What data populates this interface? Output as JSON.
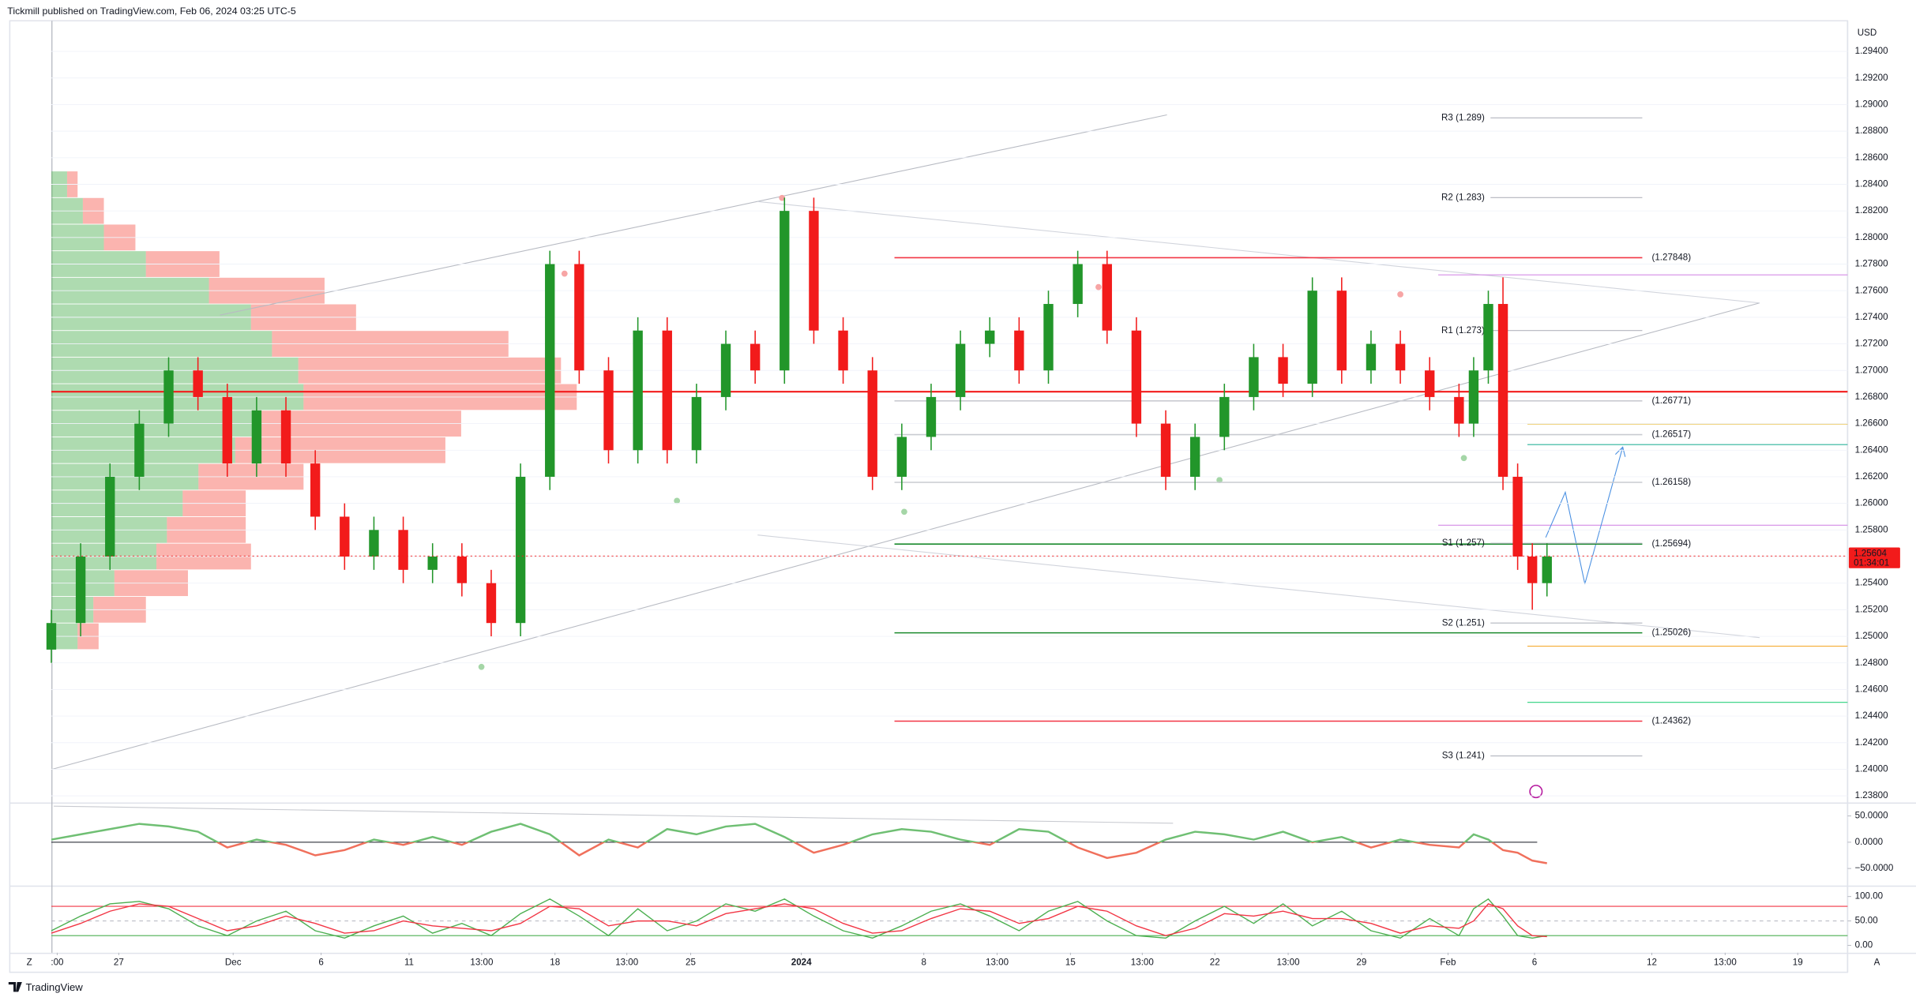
{
  "header": {
    "title": "Tickmill published on TradingView.com, Feb 06, 2024 03:25 UTC-5"
  },
  "footer": {
    "logo": "TradingView",
    "left_button": "Z",
    "right_button": "A"
  },
  "chart_data": [
    {
      "type": "candlestick",
      "currency": "USD",
      "up_color": "#22962a",
      "down_color": "#f21b1b",
      "x": [
        0,
        4,
        8,
        12,
        16,
        20,
        24,
        28,
        32,
        36,
        40,
        44,
        48,
        52,
        56,
        60,
        64,
        68,
        72,
        76,
        80,
        84,
        88,
        92,
        96,
        100,
        104,
        108,
        112,
        116,
        120,
        124,
        128,
        132,
        136,
        140,
        144,
        148,
        152,
        156,
        160,
        164,
        168,
        172,
        176,
        180,
        184,
        188,
        192,
        194,
        196,
        198,
        200,
        202,
        204
      ],
      "open": [
        1.249,
        1.251,
        1.256,
        1.262,
        1.266,
        1.27,
        1.268,
        1.263,
        1.267,
        1.263,
        1.259,
        1.256,
        1.258,
        1.255,
        1.256,
        1.254,
        1.251,
        1.262,
        1.278,
        1.27,
        1.264,
        1.273,
        1.264,
        1.268,
        1.272,
        1.27,
        1.282,
        1.273,
        1.27,
        1.262,
        1.265,
        1.268,
        1.272,
        1.273,
        1.27,
        1.275,
        1.278,
        1.273,
        1.266,
        1.262,
        1.265,
        1.268,
        1.271,
        1.269,
        1.276,
        1.27,
        1.272,
        1.27,
        1.268,
        1.266,
        1.27,
        1.275,
        1.262,
        1.256,
        1.254
      ],
      "high": [
        1.252,
        1.257,
        1.263,
        1.267,
        1.271,
        1.271,
        1.269,
        1.268,
        1.268,
        1.264,
        1.26,
        1.259,
        1.259,
        1.257,
        1.257,
        1.255,
        1.263,
        1.279,
        1.279,
        1.271,
        1.274,
        1.274,
        1.269,
        1.273,
        1.273,
        1.283,
        1.283,
        1.274,
        1.271,
        1.266,
        1.269,
        1.273,
        1.274,
        1.274,
        1.276,
        1.279,
        1.279,
        1.274,
        1.267,
        1.266,
        1.269,
        1.272,
        1.272,
        1.277,
        1.277,
        1.273,
        1.273,
        1.271,
        1.269,
        1.271,
        1.276,
        1.277,
        1.263,
        1.257,
        1.257
      ],
      "low": [
        1.248,
        1.25,
        1.255,
        1.261,
        1.265,
        1.267,
        1.262,
        1.262,
        1.262,
        1.258,
        1.255,
        1.255,
        1.254,
        1.254,
        1.253,
        1.25,
        1.25,
        1.261,
        1.269,
        1.263,
        1.263,
        1.263,
        1.263,
        1.267,
        1.269,
        1.269,
        1.272,
        1.269,
        1.261,
        1.261,
        1.264,
        1.267,
        1.271,
        1.269,
        1.269,
        1.274,
        1.272,
        1.265,
        1.261,
        1.261,
        1.264,
        1.267,
        1.268,
        1.268,
        1.269,
        1.269,
        1.269,
        1.267,
        1.265,
        1.265,
        1.269,
        1.261,
        1.255,
        1.252,
        1.253
      ],
      "close": [
        1.251,
        1.256,
        1.262,
        1.266,
        1.27,
        1.268,
        1.263,
        1.267,
        1.263,
        1.259,
        1.256,
        1.258,
        1.255,
        1.256,
        1.254,
        1.251,
        1.262,
        1.278,
        1.27,
        1.264,
        1.273,
        1.264,
        1.268,
        1.272,
        1.27,
        1.282,
        1.273,
        1.27,
        1.262,
        1.265,
        1.268,
        1.272,
        1.273,
        1.27,
        1.275,
        1.278,
        1.273,
        1.266,
        1.262,
        1.265,
        1.268,
        1.271,
        1.269,
        1.276,
        1.27,
        1.272,
        1.27,
        1.268,
        1.266,
        1.27,
        1.275,
        1.262,
        1.256,
        1.254,
        1.256
      ],
      "xlim": [
        0,
        245
      ],
      "ylim": [
        1.2375,
        1.2963
      ],
      "xticks": [
        {
          "value": 0.8,
          "label": ":00"
        },
        {
          "value": 9.2,
          "label": "27"
        },
        {
          "value": 24.8,
          "label": "Dec"
        },
        {
          "value": 36.8,
          "label": "6"
        },
        {
          "value": 48.8,
          "label": "11"
        },
        {
          "value": 58.7,
          "label": "13:00"
        },
        {
          "value": 68.7,
          "label": "18"
        },
        {
          "value": 78.5,
          "label": "13:00"
        },
        {
          "value": 87.2,
          "label": "25"
        },
        {
          "value": 102.3,
          "label": "2024"
        },
        {
          "value": 119,
          "label": "8"
        },
        {
          "value": 129,
          "label": "13:00"
        },
        {
          "value": 139,
          "label": "15"
        },
        {
          "value": 148.8,
          "label": "13:00"
        },
        {
          "value": 158.7,
          "label": "22"
        },
        {
          "value": 168.7,
          "label": "13:00"
        },
        {
          "value": 178.7,
          "label": "29"
        },
        {
          "value": 190.5,
          "label": "Feb"
        },
        {
          "value": 202.3,
          "label": "6"
        },
        {
          "value": 218.3,
          "label": "12"
        },
        {
          "value": 228.3,
          "label": "13:00"
        },
        {
          "value": 238.2,
          "label": "19"
        }
      ],
      "yticks": [
        {
          "value": 1.238,
          "label": "1.23800"
        },
        {
          "value": 1.24,
          "label": "1.24000"
        },
        {
          "value": 1.242,
          "label": "1.24200"
        },
        {
          "value": 1.244,
          "label": "1.24400"
        },
        {
          "value": 1.246,
          "label": "1.24600"
        },
        {
          "value": 1.248,
          "label": "1.24800"
        },
        {
          "value": 1.25,
          "label": "1.25000"
        },
        {
          "value": 1.252,
          "label": "1.25200"
        },
        {
          "value": 1.254,
          "label": "1.25400"
        },
        {
          "value": 1.256,
          "label": "1.25600"
        },
        {
          "value": 1.258,
          "label": "1.25800"
        },
        {
          "value": 1.26,
          "label": "1.26000"
        },
        {
          "value": 1.262,
          "label": "1.26200"
        },
        {
          "value": 1.264,
          "label": "1.26400"
        },
        {
          "value": 1.266,
          "label": "1.26600"
        },
        {
          "value": 1.268,
          "label": "1.26800"
        },
        {
          "value": 1.27,
          "label": "1.27000"
        },
        {
          "value": 1.272,
          "label": "1.27200"
        },
        {
          "value": 1.274,
          "label": "1.27400"
        },
        {
          "value": 1.276,
          "label": "1.27600"
        },
        {
          "value": 1.278,
          "label": "1.27800"
        },
        {
          "value": 1.28,
          "label": "1.28000"
        },
        {
          "value": 1.282,
          "label": "1.28200"
        },
        {
          "value": 1.284,
          "label": "1.28400"
        },
        {
          "value": 1.286,
          "label": "1.28600"
        },
        {
          "value": 1.288,
          "label": "1.28800"
        },
        {
          "value": 1.29,
          "label": "1.29000"
        },
        {
          "value": 1.292,
          "label": "1.29200"
        },
        {
          "value": 1.294,
          "label": "1.29400"
        }
      ],
      "grid": true,
      "last_price": {
        "value": 1.25604,
        "label": "1.25604"
      },
      "countdown": "01:34:01",
      "poc": 1.2684,
      "poc_color": "#f21b1b",
      "levels": [
        {
          "label": "(1.27848)",
          "value": 1.27848,
          "color": "#f23645"
        },
        {
          "label": "(1.26771)",
          "value": 1.26771,
          "color": "#c9cbd1"
        },
        {
          "label": "(1.26517)",
          "value": 1.26517,
          "color": "#c9cbd1"
        },
        {
          "label": "(1.26158)",
          "value": 1.26158,
          "color": "#c9cbd1"
        },
        {
          "label": "(1.25694)",
          "value": 1.25694,
          "color": "#1b8a2e"
        },
        {
          "label": "(1.25026)",
          "value": 1.25026,
          "color": "#1b8a2e"
        },
        {
          "label": "(1.24362)",
          "value": 1.24362,
          "color": "#f23645"
        }
      ],
      "pivots": [
        {
          "label": "R3 (1.289)",
          "value": 1.289
        },
        {
          "label": "R2 (1.283)",
          "value": 1.283
        },
        {
          "label": "R1 (1.273)",
          "value": 1.273
        },
        {
          "label": "S1 (1.257)",
          "value": 1.257
        },
        {
          "label": "S2 (1.251)",
          "value": 1.251
        },
        {
          "label": "S3 (1.241)",
          "value": 1.241
        }
      ],
      "volume_profile": {
        "buy_color": "#4caf50",
        "sell_color": "#f44336",
        "prices": [
          1.25,
          1.252,
          1.254,
          1.256,
          1.258,
          1.26,
          1.262,
          1.264,
          1.266,
          1.268,
          1.27,
          1.272,
          1.274,
          1.276,
          1.278,
          1.28,
          1.282,
          1.284
        ],
        "buy": [
          5,
          8,
          12,
          20,
          22,
          25,
          28,
          35,
          40,
          48,
          47,
          42,
          38,
          30,
          18,
          10,
          6,
          3
        ],
        "sell": [
          4,
          10,
          14,
          18,
          15,
          12,
          20,
          40,
          38,
          52,
          50,
          45,
          20,
          22,
          14,
          6,
          4,
          2
        ]
      }
    },
    {
      "type": "line",
      "x": [
        0,
        4,
        8,
        12,
        16,
        20,
        24,
        28,
        32,
        36,
        40,
        44,
        48,
        52,
        56,
        60,
        64,
        68,
        72,
        76,
        80,
        84,
        88,
        92,
        96,
        100,
        104,
        108,
        112,
        116,
        120,
        124,
        128,
        132,
        136,
        140,
        144,
        148,
        152,
        156,
        160,
        164,
        168,
        172,
        176,
        180,
        184,
        188,
        192,
        194,
        196,
        198,
        200,
        202,
        204
      ],
      "values": [
        5,
        15,
        25,
        35,
        30,
        20,
        -10,
        5,
        -5,
        -25,
        -15,
        5,
        -5,
        10,
        -5,
        20,
        35,
        15,
        -25,
        5,
        -10,
        25,
        15,
        30,
        35,
        10,
        -20,
        -5,
        15,
        25,
        20,
        5,
        -5,
        25,
        20,
        -10,
        -30,
        -20,
        5,
        20,
        15,
        5,
        20,
        0,
        10,
        -10,
        5,
        -5,
        -10,
        15,
        5,
        -15,
        -20,
        -35,
        -40
      ],
      "up_color": "#6fbf73",
      "down_color": "#f0705c",
      "ylim": [
        -82.5,
        71
      ],
      "yticks": [
        {
          "value": 50,
          "label": "50.0000"
        },
        {
          "value": 0,
          "label": "0.0000"
        },
        {
          "value": -50,
          "label": "−50.0000"
        }
      ]
    },
    {
      "type": "stochastic",
      "x": [
        0,
        4,
        8,
        12,
        16,
        20,
        24,
        28,
        32,
        36,
        40,
        44,
        48,
        52,
        56,
        60,
        64,
        68,
        72,
        76,
        80,
        84,
        88,
        92,
        96,
        100,
        104,
        108,
        112,
        116,
        120,
        124,
        128,
        132,
        136,
        140,
        144,
        148,
        152,
        156,
        160,
        164,
        168,
        172,
        176,
        180,
        184,
        188,
        192,
        194,
        196,
        198,
        200,
        202,
        204
      ],
      "series": [
        {
          "color": "#4caf50",
          "values": [
            30,
            60,
            85,
            90,
            75,
            40,
            20,
            50,
            70,
            30,
            15,
            40,
            60,
            25,
            45,
            20,
            65,
            95,
            60,
            20,
            75,
            30,
            50,
            85,
            70,
            95,
            60,
            30,
            15,
            40,
            70,
            85,
            60,
            30,
            70,
            90,
            50,
            20,
            15,
            50,
            80,
            45,
            85,
            40,
            70,
            30,
            15,
            55,
            20,
            75,
            95,
            60,
            20,
            15,
            20
          ]
        },
        {
          "color": "#f23645",
          "values": [
            25,
            45,
            70,
            85,
            80,
            55,
            30,
            40,
            60,
            45,
            25,
            30,
            50,
            40,
            35,
            30,
            45,
            80,
            75,
            40,
            50,
            50,
            40,
            65,
            75,
            85,
            75,
            45,
            25,
            30,
            55,
            75,
            70,
            45,
            55,
            80,
            70,
            40,
            20,
            35,
            65,
            60,
            70,
            55,
            55,
            45,
            25,
            40,
            35,
            50,
            85,
            75,
            40,
            20,
            18
          ]
        }
      ],
      "bands": [
        {
          "value": 80,
          "color": "#f23645",
          "dashed": false
        },
        {
          "value": 50,
          "color": "#b2b5be",
          "dashed": true
        },
        {
          "value": 20,
          "color": "#4caf50",
          "dashed": false
        }
      ],
      "ylim": [
        -15,
        117.5
      ],
      "yticks": [
        {
          "value": 100,
          "label": "100.00"
        },
        {
          "value": 50,
          "label": "50.00"
        },
        {
          "value": 0,
          "label": "0.00"
        }
      ]
    }
  ]
}
